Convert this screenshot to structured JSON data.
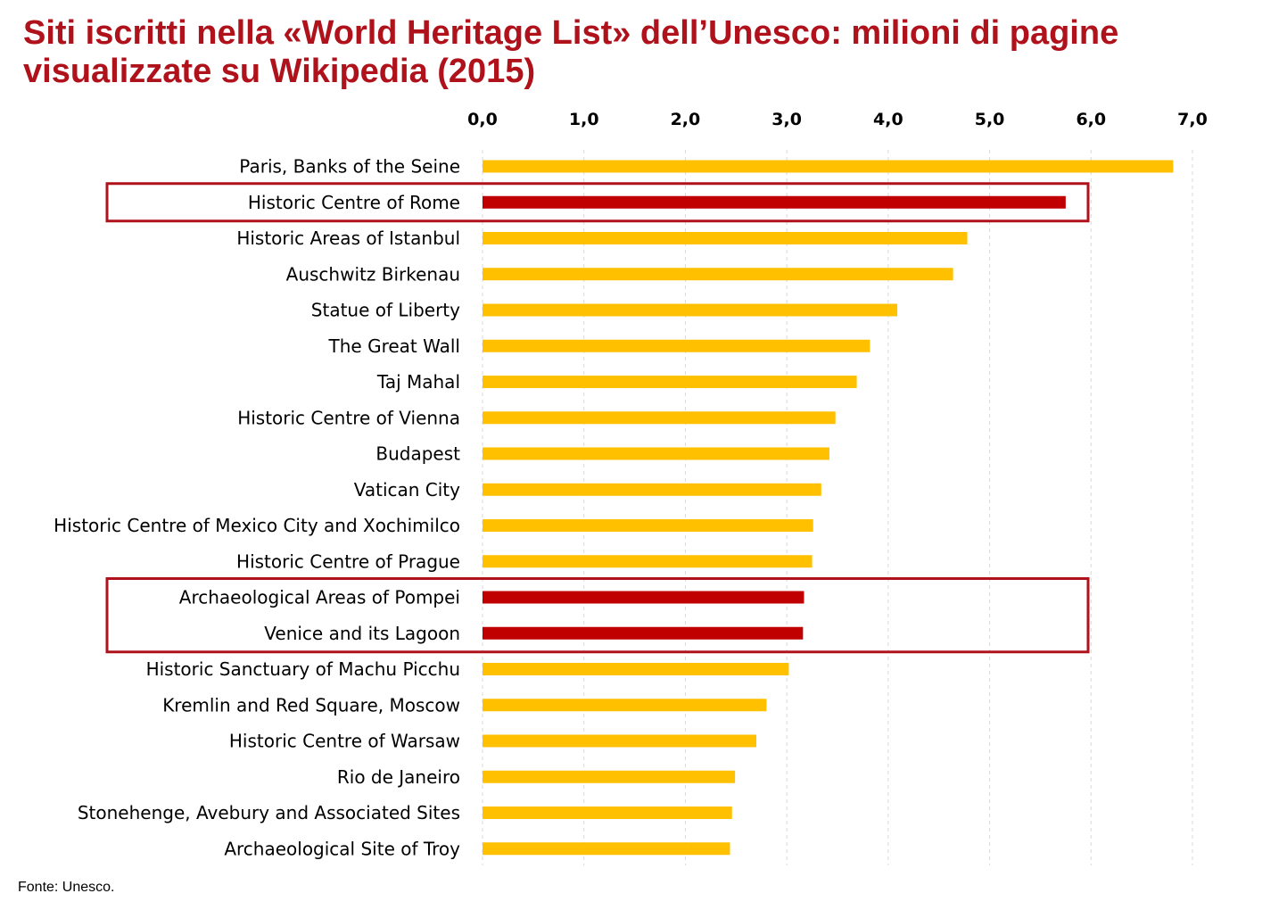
{
  "title_lines": [
    "Siti iscritti nella «World Heritage List» dell’Unesco: milioni di pagine",
    "visualizzate su Wikipedia (2015)"
  ],
  "source": "Fonte: Unesco.",
  "colors": {
    "default_bar": "#ffc000",
    "highlight_bar": "#c00000",
    "highlight_box": "#b0121c",
    "title": "#b0121c",
    "grid": "#d9d9d9"
  },
  "chart_data": {
    "type": "bar",
    "orientation": "horizontal",
    "title": "Siti iscritti nella «World Heritage List» dell’Unesco: milioni di pagine visualizzate su Wikipedia (2015)",
    "xlabel": "",
    "ylabel": "",
    "xlim": [
      0,
      7
    ],
    "x_ticks": [
      "0,0",
      "1,0",
      "2,0",
      "3,0",
      "4,0",
      "5,0",
      "6,0",
      "7,0"
    ],
    "x_axis_position": "top",
    "grid": "vertical dashed",
    "categories": [
      "Paris, Banks of the Seine",
      "Historic Centre of Rome",
      "Historic Areas of Istanbul",
      "Auschwitz Birkenau",
      "Statue of Liberty",
      "The Great Wall",
      "Taj Mahal",
      "Historic Centre of Vienna",
      "Budapest",
      "Vatican City",
      "Historic Centre of Mexico City and Xochimilco",
      "Historic Centre of Prague",
      "Archaeological Areas of Pompei",
      "Venice and its Lagoon",
      "Historic Sanctuary of Machu Picchu",
      "Kremlin and Red Square, Moscow",
      "Historic Centre of Warsaw",
      "Rio de Janeiro",
      "Stonehenge, Avebury and Associated Sites",
      "Archaeological Site of Troy"
    ],
    "values": [
      6.81,
      5.75,
      4.78,
      4.64,
      4.09,
      3.82,
      3.69,
      3.48,
      3.42,
      3.34,
      3.26,
      3.25,
      3.17,
      3.16,
      3.02,
      2.8,
      2.7,
      2.49,
      2.46,
      2.44
    ],
    "highlighted_categories": [
      "Historic Centre of Rome",
      "Archaeological Areas of Pompei",
      "Venice and its Lagoon"
    ],
    "highlight_groups": [
      [
        1,
        1
      ],
      [
        12,
        13
      ]
    ]
  }
}
